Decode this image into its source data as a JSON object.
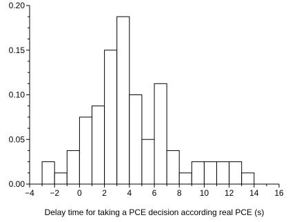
{
  "chart_data": {
    "type": "bar",
    "subtype": "histogram",
    "title": "",
    "xlabel": "Delay time for taking a PCE decision according real PCE (s)",
    "ylabel": "",
    "xlim": [
      -4,
      16
    ],
    "ylim": [
      0,
      0.2
    ],
    "grid": false,
    "legend": "none",
    "bar_fill": "#ffffff",
    "bar_stroke": "#000000",
    "x_ticks": [
      -4,
      -2,
      0,
      2,
      4,
      6,
      8,
      10,
      12,
      14,
      16
    ],
    "x_tick_labels": [
      "−4",
      "−2",
      "0",
      "2",
      "4",
      "6",
      "8",
      "10",
      "12",
      "14",
      "16"
    ],
    "y_ticks": [
      0,
      0.05,
      0.1,
      0.15,
      0.2
    ],
    "y_tick_labels": [
      "0.00",
      "0.05",
      "0.10",
      "0.15",
      "0.20"
    ],
    "bins": [
      {
        "start": -3,
        "end": -2,
        "value": 0.025
      },
      {
        "start": -2,
        "end": -1,
        "value": 0.0125
      },
      {
        "start": -1,
        "end": 0,
        "value": 0.0375
      },
      {
        "start": 0,
        "end": 1,
        "value": 0.075
      },
      {
        "start": 1,
        "end": 2,
        "value": 0.0875
      },
      {
        "start": 2,
        "end": 3,
        "value": 0.15
      },
      {
        "start": 3,
        "end": 4,
        "value": 0.1875
      },
      {
        "start": 4,
        "end": 5,
        "value": 0.1
      },
      {
        "start": 5,
        "end": 6,
        "value": 0.05
      },
      {
        "start": 6,
        "end": 7,
        "value": 0.1125
      },
      {
        "start": 7,
        "end": 8,
        "value": 0.0375
      },
      {
        "start": 8,
        "end": 9,
        "value": 0.0125
      },
      {
        "start": 9,
        "end": 10,
        "value": 0.025
      },
      {
        "start": 10,
        "end": 11,
        "value": 0.025
      },
      {
        "start": 11,
        "end": 12,
        "value": 0.025
      },
      {
        "start": 12,
        "end": 13,
        "value": 0.025
      },
      {
        "start": 13,
        "end": 14,
        "value": 0.0125
      }
    ]
  }
}
